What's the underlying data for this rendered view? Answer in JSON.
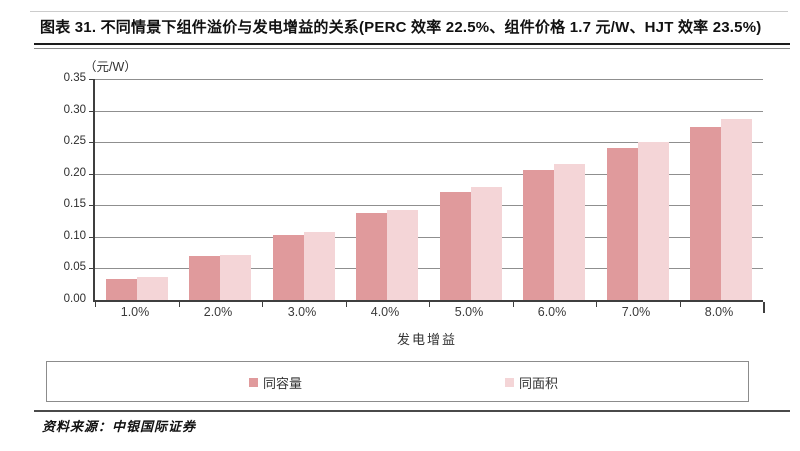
{
  "title": "图表 31. 不同情景下组件溢价与发电增益的关系(PERC 效率 22.5%、组件价格 1.7 元/W、HJT 效率 23.5%)",
  "source": "资料来源：中银国际证券",
  "legend": {
    "items": [
      {
        "label": "同容量",
        "color": "#e09a9c"
      },
      {
        "label": "同面积",
        "color": "#f4d5d7"
      }
    ]
  },
  "chart_data": {
    "type": "bar",
    "title": "不同情景下组件溢价与发电增益的关系",
    "unit_label": "（元/W）",
    "xlabel": "发电增益",
    "ylabel": "",
    "ylim": [
      0,
      0.35
    ],
    "ytick_step": 0.05,
    "yticks": [
      "0.00",
      "0.05",
      "0.10",
      "0.15",
      "0.20",
      "0.25",
      "0.30",
      "0.35"
    ],
    "categories": [
      "1.0%",
      "2.0%",
      "3.0%",
      "4.0%",
      "5.0%",
      "6.0%",
      "7.0%",
      "8.0%"
    ],
    "series": [
      {
        "name": "同容量",
        "color": "#e09a9c",
        "values": [
          0.034,
          0.069,
          0.103,
          0.137,
          0.171,
          0.206,
          0.24,
          0.274
        ]
      },
      {
        "name": "同面积",
        "color": "#f4d5d7",
        "values": [
          0.036,
          0.072,
          0.108,
          0.143,
          0.179,
          0.215,
          0.251,
          0.287
        ]
      }
    ],
    "grid": true,
    "legend_position": "bottom-box"
  }
}
